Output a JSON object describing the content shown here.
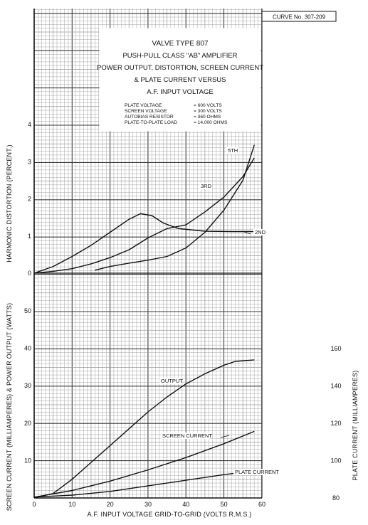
{
  "curve_number": "CURVE No. 307-209",
  "title_lines": [
    "VALVE TYPE 807",
    "PUSH-PULL CLASS \"AB\" AMPLIFIER",
    "POWER OUTPUT, DISTORTION, SCREEN CURRENT",
    "& PLATE CURRENT VERSUS",
    "A.F. INPUT VOLTAGE"
  ],
  "conditions": [
    {
      "label": "PLATE VOLTAGE",
      "value": "= 600 VOLTS"
    },
    {
      "label": "SCREEN VOLTAGE",
      "value": "= 300 VOLTS"
    },
    {
      "label": "AUTOBIAS RESISTOR",
      "value": "= 360 OHMS"
    },
    {
      "label": "PLATE-TO-PLATE LOAD",
      "value": "= 14,000 OHMS"
    }
  ],
  "colors": {
    "ink": "#111111",
    "grid_minor": "#9a9a9a",
    "grid_major": "#3a3a3a",
    "paper": "#ffffff"
  },
  "chart_data": [
    {
      "type": "line",
      "panel": "upper",
      "ylabel": "HARMONIC DISTORTION (PERCENT.)",
      "xlim": [
        0,
        60
      ],
      "ylim": [
        0,
        4
      ],
      "yticks": [
        "0",
        "1",
        "2",
        "3",
        "4"
      ],
      "grid": true,
      "series": [
        {
          "name": "2ND",
          "points": [
            [
              0,
              0
            ],
            [
              5,
              0.18
            ],
            [
              10,
              0.45
            ],
            [
              15,
              0.75
            ],
            [
              20,
              1.1
            ],
            [
              25,
              1.45
            ],
            [
              28,
              1.6
            ],
            [
              31,
              1.55
            ],
            [
              34,
              1.35
            ],
            [
              38,
              1.2
            ],
            [
              45,
              1.13
            ],
            [
              52,
              1.12
            ],
            [
              58,
              1.12
            ]
          ]
        },
        {
          "name": "3RD",
          "points": [
            [
              0,
              0
            ],
            [
              5,
              0.05
            ],
            [
              10,
              0.12
            ],
            [
              15,
              0.25
            ],
            [
              20,
              0.42
            ],
            [
              25,
              0.63
            ],
            [
              30,
              0.95
            ],
            [
              35,
              1.2
            ],
            [
              40,
              1.3
            ],
            [
              45,
              1.65
            ],
            [
              50,
              2.05
            ],
            [
              55,
              2.6
            ],
            [
              58,
              3.1
            ]
          ]
        },
        {
          "name": "5TH",
          "points": [
            [
              16,
              0.08
            ],
            [
              20,
              0.18
            ],
            [
              25,
              0.27
            ],
            [
              30,
              0.35
            ],
            [
              35,
              0.45
            ],
            [
              40,
              0.68
            ],
            [
              45,
              1.1
            ],
            [
              50,
              1.7
            ],
            [
              55,
              2.5
            ],
            [
              58,
              3.45
            ]
          ]
        }
      ]
    },
    {
      "type": "line",
      "panel": "lower",
      "ylabel": "SCREEN CURRENT (MILLIAMPERES) & POWER OUTPUT (WATTS)",
      "y2label": "PLATE CURRENT (MILLIAMPERES)",
      "xlabel": "A.F. INPUT VOLTAGE GRID-TO-GRID (VOLTS R.M.S.)",
      "xlim": [
        0,
        60
      ],
      "xticks": [
        "0",
        "10",
        "20",
        "30",
        "40",
        "50",
        "60"
      ],
      "ylim": [
        0,
        50
      ],
      "yticks": [
        "10",
        "20",
        "30",
        "40",
        "50"
      ],
      "y2lim": [
        80,
        160
      ],
      "y2ticks": [
        "80",
        "100",
        "120",
        "140",
        "160"
      ],
      "grid": true,
      "series": [
        {
          "name": "OUTPUT",
          "axis": "left",
          "points": [
            [
              0,
              0
            ],
            [
              5,
              1.2
            ],
            [
              10,
              5
            ],
            [
              15,
              9.5
            ],
            [
              20,
              14
            ],
            [
              25,
              18.5
            ],
            [
              30,
              23
            ],
            [
              35,
              27
            ],
            [
              40,
              30.5
            ],
            [
              45,
              33.2
            ],
            [
              50,
              35.5
            ],
            [
              53,
              36.5
            ],
            [
              58,
              36.9
            ]
          ]
        },
        {
          "name": "SCREEN CURRENT",
          "axis": "left",
          "points": [
            [
              0,
              0.2
            ],
            [
              10,
              2
            ],
            [
              20,
              4.5
            ],
            [
              30,
              7.5
            ],
            [
              40,
              10.8
            ],
            [
              50,
              14.5
            ],
            [
              58,
              17.8
            ]
          ]
        },
        {
          "name": "PLATE CURRENT",
          "axis": "right",
          "points": [
            [
              0,
              80.5
            ],
            [
              10,
              81.5
            ],
            [
              20,
              83.5
            ],
            [
              30,
              86.5
            ],
            [
              40,
              89.5
            ],
            [
              50,
              92.5
            ],
            [
              58,
              94.5
            ]
          ]
        }
      ]
    }
  ]
}
